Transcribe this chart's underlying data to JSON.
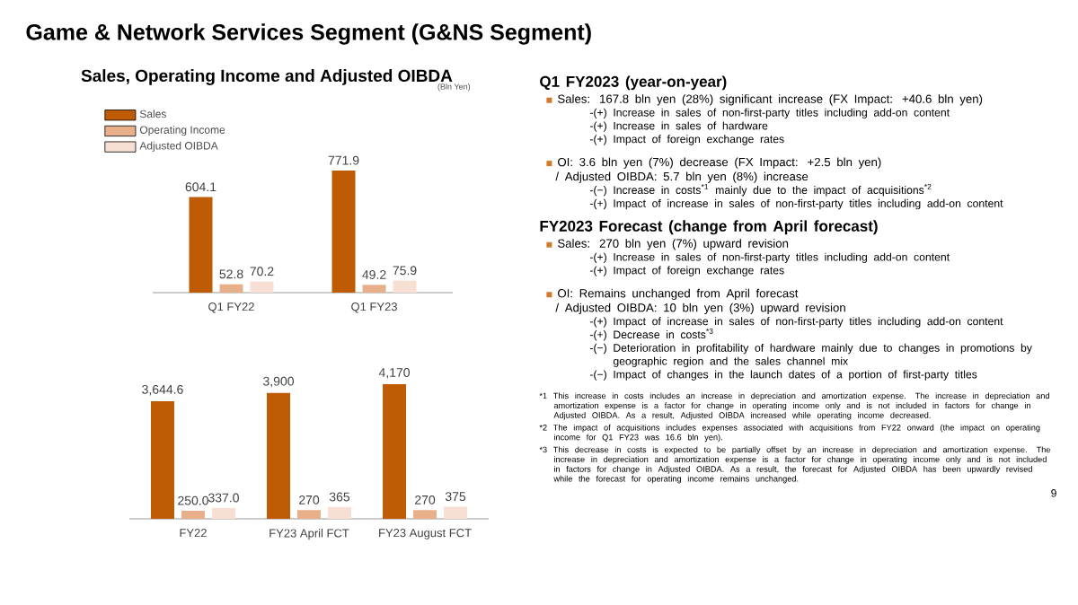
{
  "chart_data": [
    {
      "type": "bar",
      "title": "Sales, Operating Income and Adjusted OIBDA",
      "annotations": [
        "(Bln Yen)"
      ],
      "categories": [
        "Q1 FY22",
        "Q1 FY23"
      ],
      "legend": "top left",
      "series": [
        {
          "name": "Sales",
          "color": "#bf5b04",
          "values": [
            604.1,
            771.9
          ],
          "value_labels": [
            "604.1",
            "771.9"
          ]
        },
        {
          "name": "Operating Income",
          "color": "#e8b08a",
          "values": [
            52.8,
            49.2
          ],
          "value_labels": [
            "52.8",
            "49.2"
          ]
        },
        {
          "name": "Adjusted OIBDA",
          "color": "#f7e0d3",
          "values": [
            70.2,
            75.9
          ],
          "value_labels": [
            "70.2",
            "75.9"
          ]
        }
      ]
    },
    {
      "type": "bar",
      "categories": [
        "FY22",
        "FY23 April FCT",
        "FY23 August FCT"
      ],
      "series": [
        {
          "color": "#bf5b04",
          "values": [
            3644.6,
            3900,
            4170
          ],
          "value_labels": [
            "3,644.6",
            "3,900",
            "4,170"
          ]
        },
        {
          "color": "#e8b08a",
          "values": [
            250.0,
            270,
            270
          ],
          "value_labels": [
            "250.0",
            "270",
            "270"
          ]
        },
        {
          "color": "#f7e0d3",
          "values": [
            337.0,
            365,
            375
          ],
          "value_labels": [
            "337.0",
            "365",
            "375"
          ]
        }
      ]
    },
    {
      "type": "other",
      "title": "Game & Network Services Segment (G&NS Segment)",
      "annotations": [
        "Q1 FY2023 (year-on-year)",
        "Sales: 167.8 bln yen (28%) significant increase (FX Impact: +40.6 bln yen)",
        "-(+) Increase in sales of non-first-party titles including add-on content",
        "-(+) Increase in sales of hardware",
        "-(+) Impact of foreign exchange rates",
        "OI:  3.6 bln yen (7%) decrease (FX Impact: +2.5 bln yen)",
        "/ Adjusted OIBDA: 5.7 bln yen (8%) increase",
        "-(−) Increase in costs$^{*1}$ mainly due to the impact of acquisitions$^{*2}$",
        "-(+) Impact of increase in sales of non-first-party titles including add-on content",
        "FY2023 Forecast (change from April forecast)",
        "Sales: 270 bln yen (7%) upward revision",
        "-(+) Increase in sales of non-first-party titles including add-on content",
        "-(+) Impact of foreign exchange rates",
        "OI: Remains unchanged from April forecast",
        "/ Adjusted OIBDA: 10 bln yen (3%) upward revision",
        "-(+) Impact of increase in sales of non-first-party titles including add-on content",
        "-(+) Decrease in costs$^{*3}$",
        "-(−) Deterioration in profitability of hardware mainly due to changes in promotions by geographic region and the sales channel mix",
        "-(−) Impact of changes in the launch dates of a portion of first-party titles",
        "*1 This increase in costs includes an increase in depreciation and amortization expense. The increase in depreciation and amortization expense is a factor for change in operating income only and is not included in factors for change in Adjusted OIBDA. As a result, Adjusted OIBDA increased while operating income decreased.",
        "*2 The impact of acquisitions includes expenses associated with acquisitions from FY22 onward (the impact on operating income for Q1 FY23 was 16.6 bln yen).",
        "*3 This decrease in costs is expected to be partially offset by an increase in depreciation and amortization expense. The increase in depreciation and amortization expense is a factor for change in operating income only and is not included in factors for change in Adjusted OIBDA. As a result, the forecast for Adjusted OIBDA has been upwardly revised while the forecast for operating income remains unchanged.",
        "9"
      ]
    }
  ]
}
